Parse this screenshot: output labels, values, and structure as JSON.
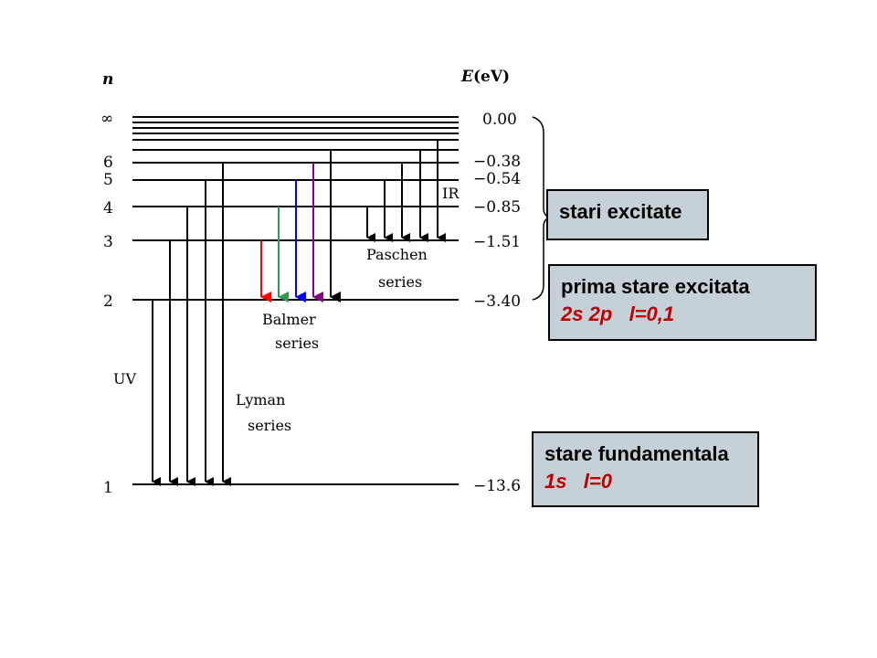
{
  "axis": {
    "n_title": "n",
    "e_title_italic": "E",
    "e_title_unit": "(eV)"
  },
  "levels": [
    {
      "n": "∞",
      "energy": "0.00",
      "value": 0.0
    },
    {
      "n": "6",
      "energy": "−0.38",
      "value": -0.38
    },
    {
      "n": "5",
      "energy": "−0.54",
      "value": -0.54
    },
    {
      "n": "4",
      "energy": "−0.85",
      "value": -0.85
    },
    {
      "n": "3",
      "energy": "−1.51",
      "value": -1.51
    },
    {
      "n": "2",
      "energy": "−3.40",
      "value": -3.4
    },
    {
      "n": "1",
      "energy": "−13.6",
      "value": -13.6
    }
  ],
  "series": {
    "lyman": {
      "line1": "Lyman",
      "line2": "series",
      "region": "UV"
    },
    "balmer": {
      "line1": "Balmer",
      "line2": "series",
      "colors": [
        "#ff0000",
        "#2e9b50",
        "#0000ff",
        "#8b008b",
        "#000000"
      ]
    },
    "paschen": {
      "line1": "Paschen",
      "line2": "series",
      "region": "IR"
    }
  },
  "boxes": {
    "excited": {
      "title": "stari excitate"
    },
    "first_excited": {
      "title": "prima stare excitata",
      "subtitle": "2s 2p   l=0,1"
    },
    "ground": {
      "title": "stare fundamentala",
      "subtitle": "1s   l=0"
    }
  }
}
